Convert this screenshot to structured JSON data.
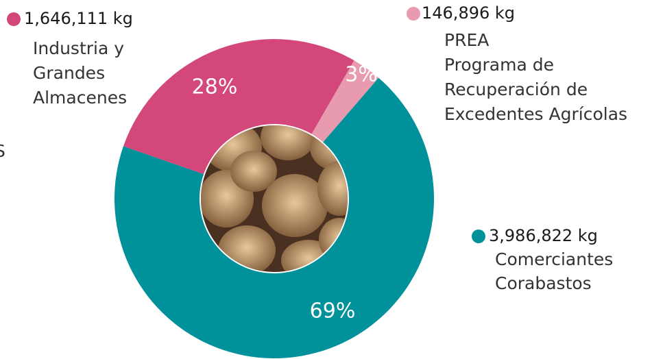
{
  "chart_data": {
    "type": "donut",
    "categories": [
      [
        "PREA",
        "Programa de",
        "Recuperación de",
        "Excedentes Agrícolas"
      ],
      [
        "Comerciantes",
        "Corabastos"
      ],
      [
        "Industria y",
        "Grandes",
        "Almacenes"
      ]
    ],
    "values": [
      3,
      69,
      28
    ],
    "value_labels": [
      "3%",
      "69%",
      "28%"
    ],
    "amount_labels": [
      "146,896 kg",
      "3,986,822 kg",
      "1,646,111 kg"
    ],
    "colors": [
      "#e89aae",
      "#00919a",
      "#d4477a"
    ],
    "cut_off_text": "S"
  }
}
